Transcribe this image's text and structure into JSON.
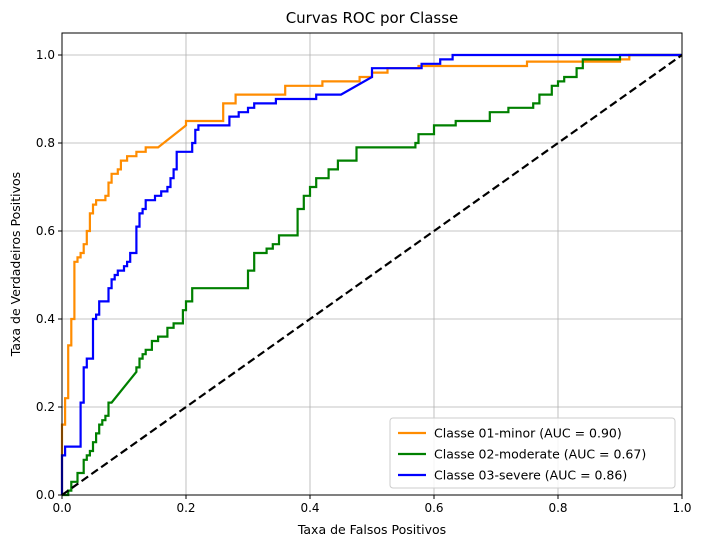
{
  "chart_data": {
    "type": "line",
    "title": "Curvas ROC por Classe",
    "xlabel": "Taxa de Falsos Positivos",
    "ylabel": "Taxa de Verdadeiros Positivos",
    "xlim": [
      0,
      1.0
    ],
    "ylim": [
      0,
      1.05
    ],
    "xticks": [
      "0.0",
      "0.2",
      "0.4",
      "0.6",
      "0.8",
      "1.0"
    ],
    "yticks": [
      "0.0",
      "0.2",
      "0.4",
      "0.6",
      "0.8",
      "1.0"
    ],
    "grid": true,
    "legend_position": "lower-right",
    "series": [
      {
        "name": "Classe 01-minor (AUC = 0.90)",
        "color": "#ff8c00",
        "points": [
          [
            0,
            0
          ],
          [
            0,
            0.16
          ],
          [
            0.005,
            0.16
          ],
          [
            0.005,
            0.22
          ],
          [
            0.01,
            0.22
          ],
          [
            0.01,
            0.34
          ],
          [
            0.015,
            0.34
          ],
          [
            0.015,
            0.4
          ],
          [
            0.02,
            0.4
          ],
          [
            0.02,
            0.53
          ],
          [
            0.025,
            0.53
          ],
          [
            0.025,
            0.54
          ],
          [
            0.03,
            0.54
          ],
          [
            0.03,
            0.55
          ],
          [
            0.035,
            0.55
          ],
          [
            0.035,
            0.57
          ],
          [
            0.04,
            0.57
          ],
          [
            0.04,
            0.6
          ],
          [
            0.045,
            0.6
          ],
          [
            0.045,
            0.64
          ],
          [
            0.05,
            0.64
          ],
          [
            0.05,
            0.66
          ],
          [
            0.055,
            0.66
          ],
          [
            0.055,
            0.67
          ],
          [
            0.07,
            0.67
          ],
          [
            0.07,
            0.68
          ],
          [
            0.075,
            0.68
          ],
          [
            0.075,
            0.71
          ],
          [
            0.08,
            0.71
          ],
          [
            0.08,
            0.73
          ],
          [
            0.09,
            0.73
          ],
          [
            0.09,
            0.74
          ],
          [
            0.095,
            0.74
          ],
          [
            0.095,
            0.76
          ],
          [
            0.105,
            0.76
          ],
          [
            0.105,
            0.77
          ],
          [
            0.12,
            0.77
          ],
          [
            0.12,
            0.78
          ],
          [
            0.135,
            0.78
          ],
          [
            0.135,
            0.79
          ],
          [
            0.155,
            0.79
          ],
          [
            0.2,
            0.84
          ],
          [
            0.2,
            0.85
          ],
          [
            0.26,
            0.85
          ],
          [
            0.26,
            0.89
          ],
          [
            0.28,
            0.89
          ],
          [
            0.28,
            0.91
          ],
          [
            0.36,
            0.91
          ],
          [
            0.36,
            0.93
          ],
          [
            0.42,
            0.93
          ],
          [
            0.42,
            0.94
          ],
          [
            0.48,
            0.94
          ],
          [
            0.48,
            0.95
          ],
          [
            0.5,
            0.95
          ],
          [
            0.5,
            0.96
          ],
          [
            0.525,
            0.96
          ],
          [
            0.525,
            0.97
          ],
          [
            0.575,
            0.97
          ],
          [
            0.575,
            0.975
          ],
          [
            0.75,
            0.975
          ],
          [
            0.75,
            0.985
          ],
          [
            0.9,
            0.985
          ],
          [
            0.9,
            0.99
          ],
          [
            0.915,
            0.99
          ],
          [
            0.915,
            1.0
          ],
          [
            1.0,
            1.0
          ]
        ]
      },
      {
        "name": "Classe 02-moderate (AUC = 0.67)",
        "color": "#008000",
        "points": [
          [
            0,
            0
          ],
          [
            0.01,
            0
          ],
          [
            0.01,
            0.01
          ],
          [
            0.015,
            0.01
          ],
          [
            0.015,
            0.03
          ],
          [
            0.025,
            0.03
          ],
          [
            0.025,
            0.05
          ],
          [
            0.035,
            0.05
          ],
          [
            0.035,
            0.08
          ],
          [
            0.04,
            0.08
          ],
          [
            0.04,
            0.09
          ],
          [
            0.045,
            0.09
          ],
          [
            0.045,
            0.1
          ],
          [
            0.05,
            0.1
          ],
          [
            0.05,
            0.12
          ],
          [
            0.055,
            0.12
          ],
          [
            0.055,
            0.14
          ],
          [
            0.06,
            0.14
          ],
          [
            0.06,
            0.16
          ],
          [
            0.065,
            0.16
          ],
          [
            0.065,
            0.17
          ],
          [
            0.07,
            0.17
          ],
          [
            0.07,
            0.18
          ],
          [
            0.075,
            0.18
          ],
          [
            0.075,
            0.21
          ],
          [
            0.08,
            0.21
          ],
          [
            0.12,
            0.28
          ],
          [
            0.12,
            0.29
          ],
          [
            0.125,
            0.29
          ],
          [
            0.125,
            0.31
          ],
          [
            0.13,
            0.31
          ],
          [
            0.13,
            0.32
          ],
          [
            0.135,
            0.32
          ],
          [
            0.135,
            0.33
          ],
          [
            0.145,
            0.33
          ],
          [
            0.145,
            0.35
          ],
          [
            0.155,
            0.35
          ],
          [
            0.155,
            0.36
          ],
          [
            0.17,
            0.36
          ],
          [
            0.17,
            0.38
          ],
          [
            0.18,
            0.38
          ],
          [
            0.18,
            0.39
          ],
          [
            0.195,
            0.39
          ],
          [
            0.195,
            0.42
          ],
          [
            0.2,
            0.42
          ],
          [
            0.2,
            0.44
          ],
          [
            0.21,
            0.44
          ],
          [
            0.21,
            0.47
          ],
          [
            0.3,
            0.47
          ],
          [
            0.3,
            0.51
          ],
          [
            0.31,
            0.51
          ],
          [
            0.31,
            0.55
          ],
          [
            0.33,
            0.55
          ],
          [
            0.33,
            0.56
          ],
          [
            0.34,
            0.56
          ],
          [
            0.34,
            0.57
          ],
          [
            0.35,
            0.57
          ],
          [
            0.35,
            0.59
          ],
          [
            0.38,
            0.59
          ],
          [
            0.38,
            0.65
          ],
          [
            0.39,
            0.65
          ],
          [
            0.39,
            0.68
          ],
          [
            0.4,
            0.68
          ],
          [
            0.4,
            0.7
          ],
          [
            0.41,
            0.7
          ],
          [
            0.41,
            0.72
          ],
          [
            0.43,
            0.72
          ],
          [
            0.43,
            0.74
          ],
          [
            0.445,
            0.74
          ],
          [
            0.445,
            0.76
          ],
          [
            0.475,
            0.76
          ],
          [
            0.475,
            0.79
          ],
          [
            0.57,
            0.79
          ],
          [
            0.57,
            0.8
          ],
          [
            0.575,
            0.8
          ],
          [
            0.575,
            0.82
          ],
          [
            0.6,
            0.82
          ],
          [
            0.6,
            0.84
          ],
          [
            0.635,
            0.84
          ],
          [
            0.635,
            0.85
          ],
          [
            0.69,
            0.85
          ],
          [
            0.69,
            0.87
          ],
          [
            0.72,
            0.87
          ],
          [
            0.72,
            0.88
          ],
          [
            0.76,
            0.88
          ],
          [
            0.76,
            0.89
          ],
          [
            0.77,
            0.89
          ],
          [
            0.77,
            0.91
          ],
          [
            0.79,
            0.91
          ],
          [
            0.79,
            0.93
          ],
          [
            0.8,
            0.93
          ],
          [
            0.8,
            0.94
          ],
          [
            0.81,
            0.94
          ],
          [
            0.81,
            0.95
          ],
          [
            0.83,
            0.95
          ],
          [
            0.83,
            0.97
          ],
          [
            0.84,
            0.97
          ],
          [
            0.84,
            0.99
          ],
          [
            0.9,
            0.99
          ],
          [
            0.9,
            1.0
          ],
          [
            1.0,
            1.0
          ]
        ]
      },
      {
        "name": "Classe 03-severe (AUC = 0.86)",
        "color": "#0000ff",
        "points": [
          [
            0,
            0
          ],
          [
            0,
            0.09
          ],
          [
            0.005,
            0.09
          ],
          [
            0.005,
            0.11
          ],
          [
            0.03,
            0.11
          ],
          [
            0.03,
            0.21
          ],
          [
            0.035,
            0.21
          ],
          [
            0.035,
            0.29
          ],
          [
            0.04,
            0.29
          ],
          [
            0.04,
            0.31
          ],
          [
            0.05,
            0.31
          ],
          [
            0.05,
            0.4
          ],
          [
            0.055,
            0.4
          ],
          [
            0.055,
            0.41
          ],
          [
            0.06,
            0.41
          ],
          [
            0.06,
            0.44
          ],
          [
            0.075,
            0.44
          ],
          [
            0.075,
            0.47
          ],
          [
            0.08,
            0.47
          ],
          [
            0.08,
            0.49
          ],
          [
            0.085,
            0.49
          ],
          [
            0.085,
            0.5
          ],
          [
            0.09,
            0.5
          ],
          [
            0.09,
            0.51
          ],
          [
            0.1,
            0.51
          ],
          [
            0.1,
            0.52
          ],
          [
            0.105,
            0.52
          ],
          [
            0.105,
            0.53
          ],
          [
            0.11,
            0.53
          ],
          [
            0.11,
            0.55
          ],
          [
            0.12,
            0.55
          ],
          [
            0.12,
            0.61
          ],
          [
            0.125,
            0.61
          ],
          [
            0.125,
            0.64
          ],
          [
            0.13,
            0.64
          ],
          [
            0.13,
            0.65
          ],
          [
            0.135,
            0.65
          ],
          [
            0.135,
            0.67
          ],
          [
            0.15,
            0.67
          ],
          [
            0.15,
            0.68
          ],
          [
            0.16,
            0.68
          ],
          [
            0.16,
            0.69
          ],
          [
            0.17,
            0.69
          ],
          [
            0.17,
            0.7
          ],
          [
            0.175,
            0.7
          ],
          [
            0.175,
            0.72
          ],
          [
            0.18,
            0.72
          ],
          [
            0.18,
            0.74
          ],
          [
            0.185,
            0.74
          ],
          [
            0.185,
            0.78
          ],
          [
            0.21,
            0.78
          ],
          [
            0.21,
            0.8
          ],
          [
            0.215,
            0.8
          ],
          [
            0.215,
            0.83
          ],
          [
            0.22,
            0.83
          ],
          [
            0.22,
            0.84
          ],
          [
            0.27,
            0.84
          ],
          [
            0.27,
            0.86
          ],
          [
            0.285,
            0.86
          ],
          [
            0.285,
            0.87
          ],
          [
            0.3,
            0.87
          ],
          [
            0.3,
            0.88
          ],
          [
            0.31,
            0.88
          ],
          [
            0.31,
            0.89
          ],
          [
            0.345,
            0.89
          ],
          [
            0.345,
            0.9
          ],
          [
            0.41,
            0.9
          ],
          [
            0.41,
            0.91
          ],
          [
            0.45,
            0.91
          ],
          [
            0.5,
            0.95
          ],
          [
            0.5,
            0.97
          ],
          [
            0.58,
            0.97
          ],
          [
            0.58,
            0.98
          ],
          [
            0.61,
            0.98
          ],
          [
            0.61,
            0.99
          ],
          [
            0.63,
            0.99
          ],
          [
            0.63,
            1.0
          ],
          [
            1.0,
            1.0
          ]
        ]
      },
      {
        "name": "",
        "color": "#000000",
        "dashed": true,
        "points": [
          [
            0,
            0
          ],
          [
            1,
            1
          ]
        ]
      }
    ]
  }
}
